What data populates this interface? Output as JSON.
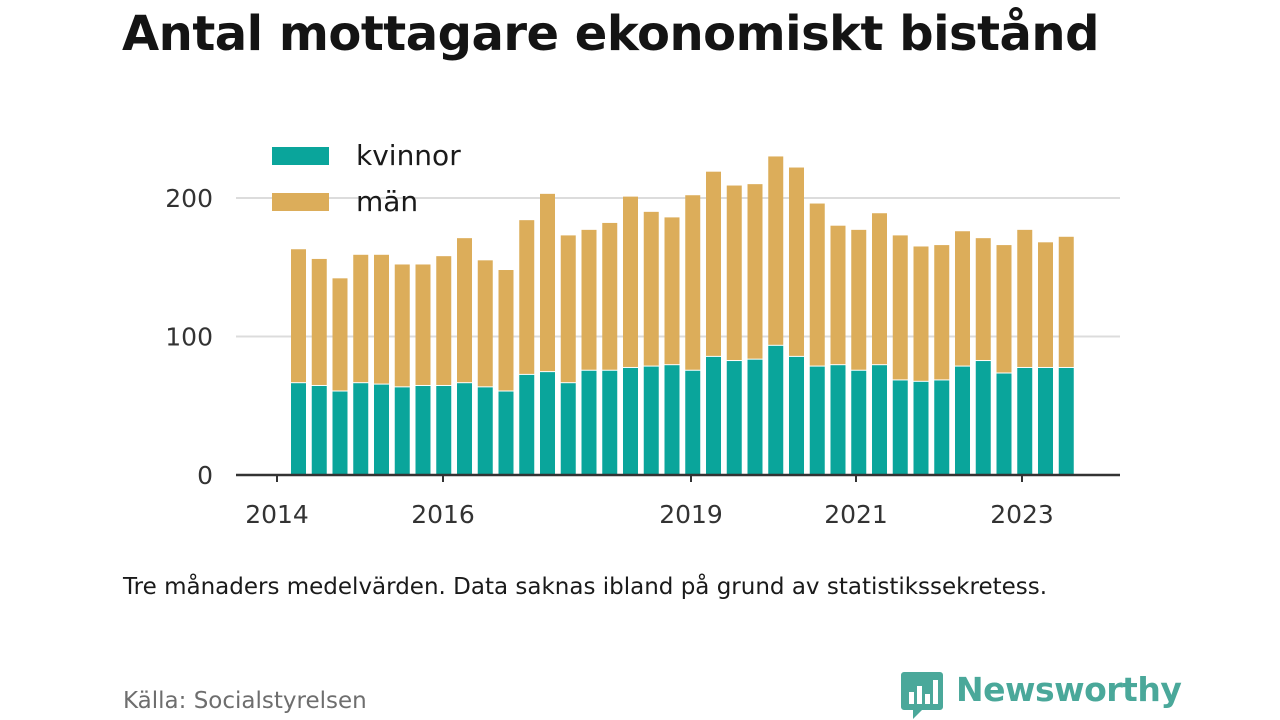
{
  "title": "Antal mottagare ekonomiskt bistånd",
  "note": "Tre månaders medelvärden. Data saknas ibland på grund av statistikssekretess.",
  "source": "Källa: Socialstyrelsen",
  "brand": {
    "name": "Newsworthy"
  },
  "colors": {
    "kvinnor": "#0aa59b",
    "man": "#dcad5a",
    "grid": "#dcdcdc",
    "axis": "#333333",
    "brand": "#4aa89a"
  },
  "chart_data": {
    "type": "bar",
    "stacked": true,
    "categories": [
      "2014 Q2",
      "2014 Q3",
      "2014 Q4",
      "2015 Q1",
      "2015 Q2",
      "2015 Q3",
      "2015 Q4",
      "2016 Q1",
      "2016 Q2",
      "2016 Q3",
      "2016 Q4",
      "2017 Q1",
      "2017 Q2",
      "2017 Q3",
      "2017 Q4",
      "2018 Q1",
      "2018 Q2",
      "2018 Q3",
      "2018 Q4",
      "2019 Q1",
      "2019 Q2",
      "2019 Q3",
      "2019 Q4",
      "2020 Q1",
      "2020 Q2",
      "2020 Q3",
      "2020 Q4",
      "2021 Q1",
      "2021 Q2",
      "2021 Q3",
      "2021 Q4",
      "2022 Q1",
      "2022 Q2",
      "2022 Q3",
      "2022 Q4",
      "2023 Q1",
      "2023 Q2",
      "2023 Q3"
    ],
    "series": [
      {
        "name": "kvinnor",
        "values": [
          67,
          65,
          61,
          67,
          66,
          64,
          65,
          65,
          67,
          64,
          61,
          73,
          75,
          67,
          76,
          76,
          78,
          79,
          80,
          76,
          86,
          83,
          84,
          94,
          86,
          79,
          80,
          76,
          80,
          69,
          68,
          69,
          79,
          83,
          74,
          78,
          78,
          78
        ]
      },
      {
        "name": "män",
        "values": [
          96,
          91,
          81,
          92,
          93,
          88,
          87,
          93,
          104,
          91,
          87,
          111,
          128,
          106,
          101,
          106,
          123,
          111,
          106,
          126,
          133,
          126,
          126,
          136,
          136,
          117,
          100,
          101,
          109,
          104,
          97,
          97,
          97,
          88,
          92,
          99,
          90,
          94
        ]
      }
    ],
    "xticks": [
      "2014",
      "2016",
      "2019",
      "2021",
      "2023"
    ],
    "yticks": [
      0,
      100,
      200
    ],
    "ylim": [
      0,
      250
    ],
    "xlabel": "",
    "ylabel": "",
    "legend": "top-left",
    "grid": "horizontal"
  }
}
